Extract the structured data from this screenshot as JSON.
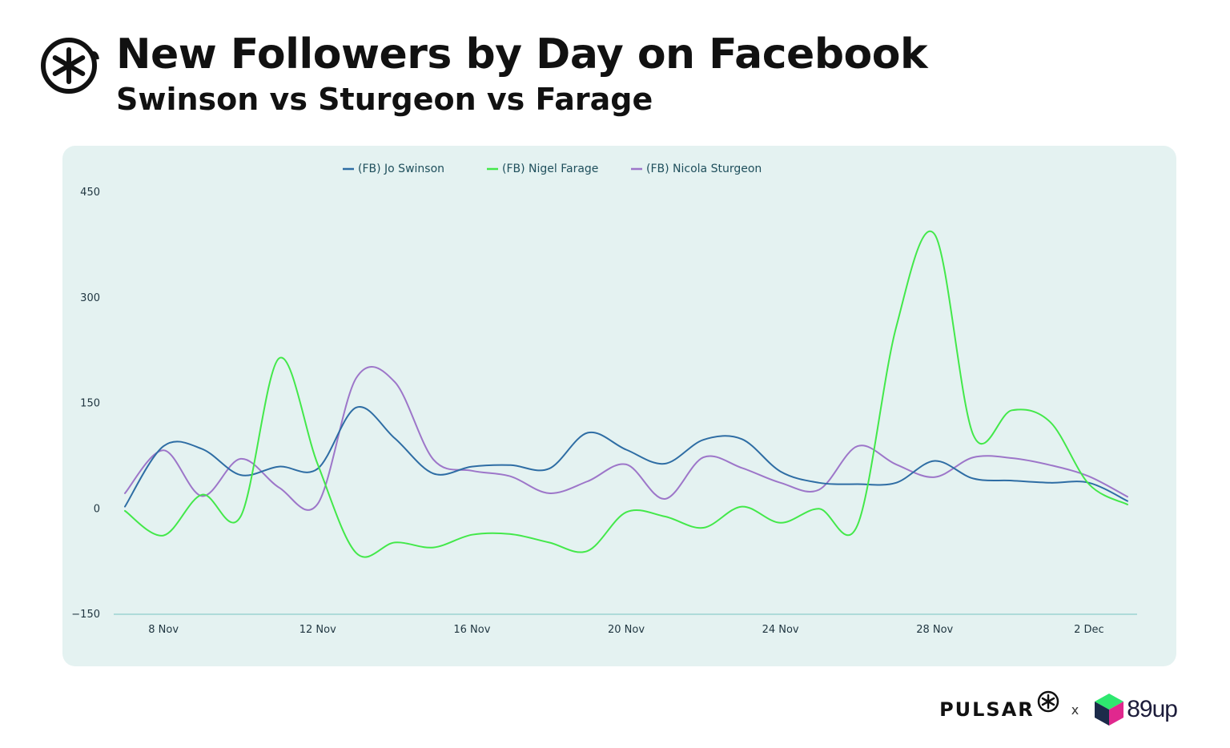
{
  "header": {
    "title": "New Followers by Day on Facebook",
    "subtitle": "Swinson vs Sturgeon vs Farage"
  },
  "footer": {
    "brand": "PULSAR",
    "separator": "x",
    "partner": "89up"
  },
  "chart_data": {
    "type": "line",
    "title": "New Followers by Day on Facebook",
    "subtitle": "Swinson vs Sturgeon vs Farage",
    "xlabel": "",
    "ylabel": "",
    "ylim": [
      -150,
      450
    ],
    "yticks": [
      450,
      300,
      150,
      0,
      -150
    ],
    "ytick_labels": [
      "450",
      "300",
      "150",
      "0",
      "−150"
    ],
    "xticks": [
      {
        "x": 7,
        "label": "8 Nov"
      },
      {
        "x": 11,
        "label": "12 Nov"
      },
      {
        "x": 15,
        "label": "16 Nov"
      },
      {
        "x": 19,
        "label": "20 Nov"
      },
      {
        "x": 23,
        "label": "24 Nov"
      },
      {
        "x": 27,
        "label": "28 Nov"
      },
      {
        "x": 31,
        "label": "2 Dec"
      }
    ],
    "x": [
      6,
      7,
      8,
      9,
      10,
      11,
      12,
      13,
      14,
      15,
      16,
      17,
      18,
      19,
      20,
      21,
      22,
      23,
      24,
      25,
      26,
      27,
      28,
      29,
      30,
      31,
      32
    ],
    "legend_position": "top-center",
    "grid": false,
    "colors": {
      "swinson": "#2e6da4",
      "farage": "#43e84a",
      "sturgeon": "#9d76c9",
      "axis": "#9cd3d1",
      "panel": "#e4f2f1",
      "tick_text": "#1f3540",
      "legend_text": "#1f4f5c"
    },
    "series": [
      {
        "key": "swinson",
        "name": "(FB) Jo Swinson",
        "values": [
          3,
          89,
          85,
          48,
          60,
          57,
          144,
          100,
          50,
          60,
          62,
          57,
          108,
          84,
          64,
          98,
          99,
          53,
          37,
          35,
          37,
          68,
          43,
          40,
          37,
          37,
          11
        ]
      },
      {
        "key": "farage",
        "name": "(FB) Nigel Farage",
        "values": [
          -3,
          -38,
          20,
          -11,
          214,
          63,
          -63,
          -48,
          -55,
          -37,
          -36,
          -48,
          -60,
          -5,
          -11,
          -27,
          3,
          -20,
          0,
          -23,
          258,
          390,
          105,
          140,
          123,
          35,
          6
        ]
      },
      {
        "key": "sturgeon",
        "name": "(FB) Nicola Sturgeon",
        "values": [
          22,
          83,
          18,
          71,
          30,
          7,
          186,
          180,
          70,
          54,
          46,
          22,
          39,
          63,
          14,
          73,
          58,
          37,
          27,
          89,
          63,
          45,
          73,
          72,
          62,
          46,
          17
        ]
      }
    ]
  }
}
